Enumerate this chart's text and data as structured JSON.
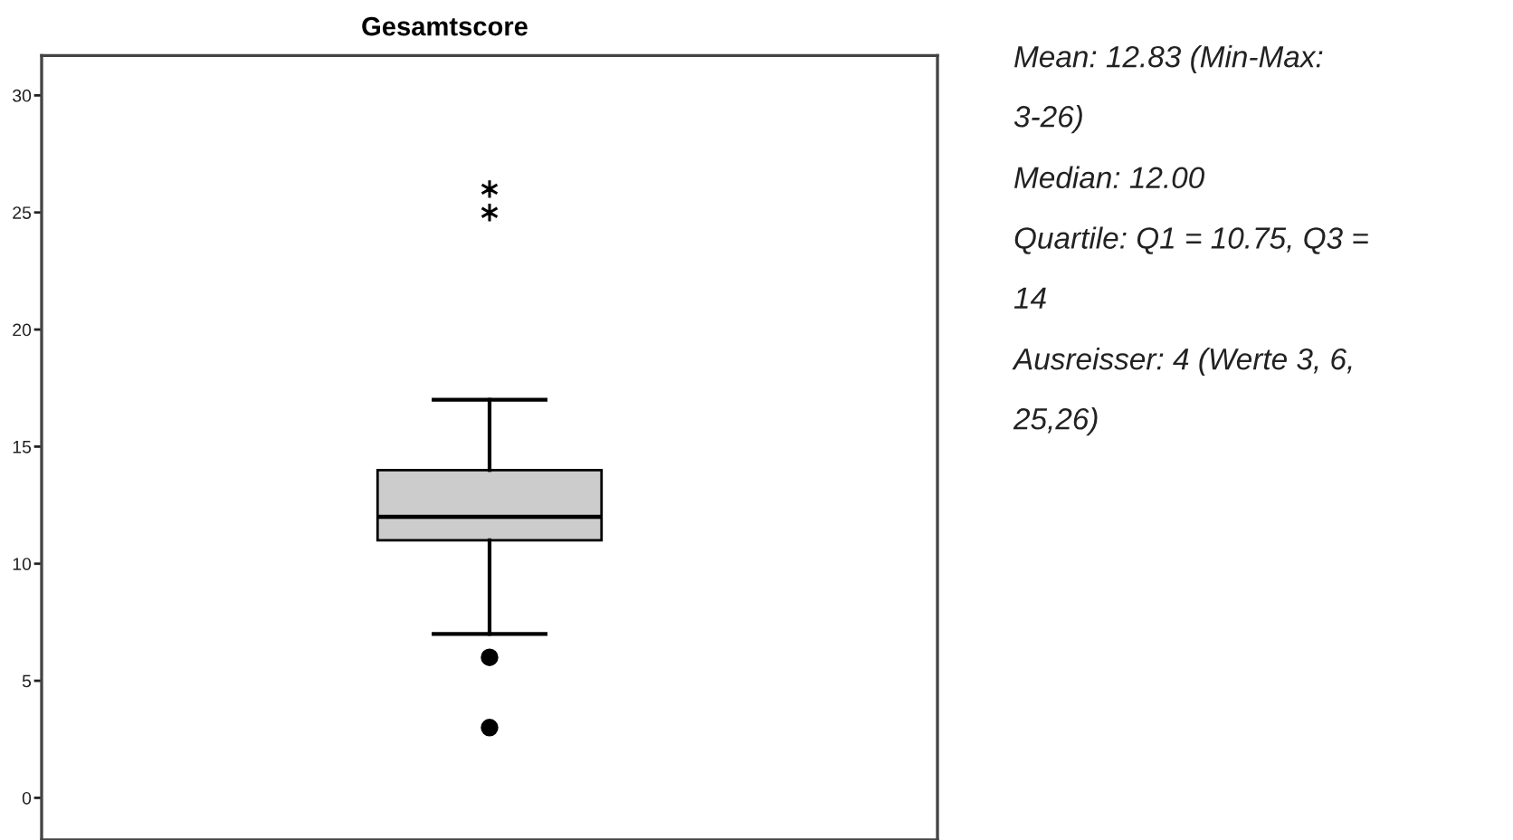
{
  "chart_data": {
    "type": "box",
    "title": "Gesamtscore",
    "categories": [
      null
    ],
    "boxes": [
      {
        "low": 7,
        "q1": 11,
        "median": 12,
        "q3": 14,
        "high": 17,
        "outliers": [
          3,
          6,
          25,
          26
        ]
      }
    ],
    "color": "#cccccc",
    "marker": "circle",
    "ylim": [
      -1.8,
      31.7
    ],
    "yticks": [
      0,
      5,
      10,
      15,
      20,
      25,
      30
    ],
    "tick_labels": "y",
    "annotations": [
      "Mean: 12.83 (Min-Max: 3-26)",
      "Median: 12.00",
      "Quartile: Q1 = 10.75, Q3 = 14",
      "Ausreisser: 4 (Werte 3, 6, 25,26)"
    ]
  }
}
